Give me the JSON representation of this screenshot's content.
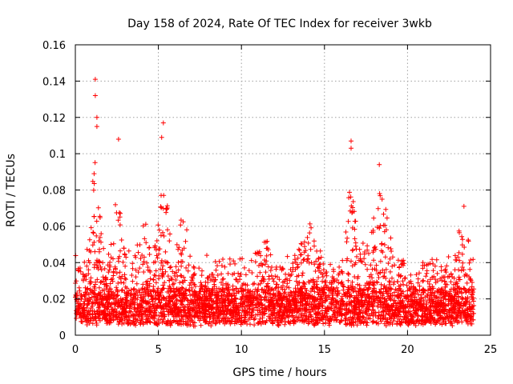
{
  "chart_data": {
    "type": "scatter",
    "title": "Day 158 of 2024, Rate Of TEC Index for receiver 3wkb",
    "xlabel": "GPS time / hours",
    "ylabel": "ROTI / TECUs",
    "xlim": [
      0,
      25
    ],
    "ylim": [
      0,
      0.16
    ],
    "xticks": [
      0,
      5,
      10,
      15,
      20,
      25
    ],
    "xtick_labels": [
      "0",
      "5",
      "10",
      "15",
      "20",
      "25"
    ],
    "yticks": [
      0,
      0.02,
      0.04,
      0.06,
      0.08,
      0.1,
      0.12,
      0.14,
      0.16
    ],
    "ytick_labels": [
      "0",
      "0.02",
      "0.04",
      "0.06",
      "0.08",
      "0.1",
      "0.12",
      "0.14",
      "0.16"
    ],
    "grid": true,
    "marker": "+",
    "marker_color": "#ff0000",
    "series": [
      {
        "name": "ROTI",
        "x_range": [
          0,
          24
        ],
        "baseline_mean": 0.018,
        "notable_points": [
          {
            "x": 1.2,
            "y": 0.141
          },
          {
            "x": 1.2,
            "y": 0.132
          },
          {
            "x": 1.3,
            "y": 0.12
          },
          {
            "x": 1.3,
            "y": 0.115
          },
          {
            "x": 2.6,
            "y": 0.108
          },
          {
            "x": 5.3,
            "y": 0.117
          },
          {
            "x": 5.2,
            "y": 0.109
          },
          {
            "x": 16.6,
            "y": 0.107
          },
          {
            "x": 16.6,
            "y": 0.103
          },
          {
            "x": 18.3,
            "y": 0.094
          },
          {
            "x": 23.4,
            "y": 0.071
          }
        ]
      }
    ]
  }
}
